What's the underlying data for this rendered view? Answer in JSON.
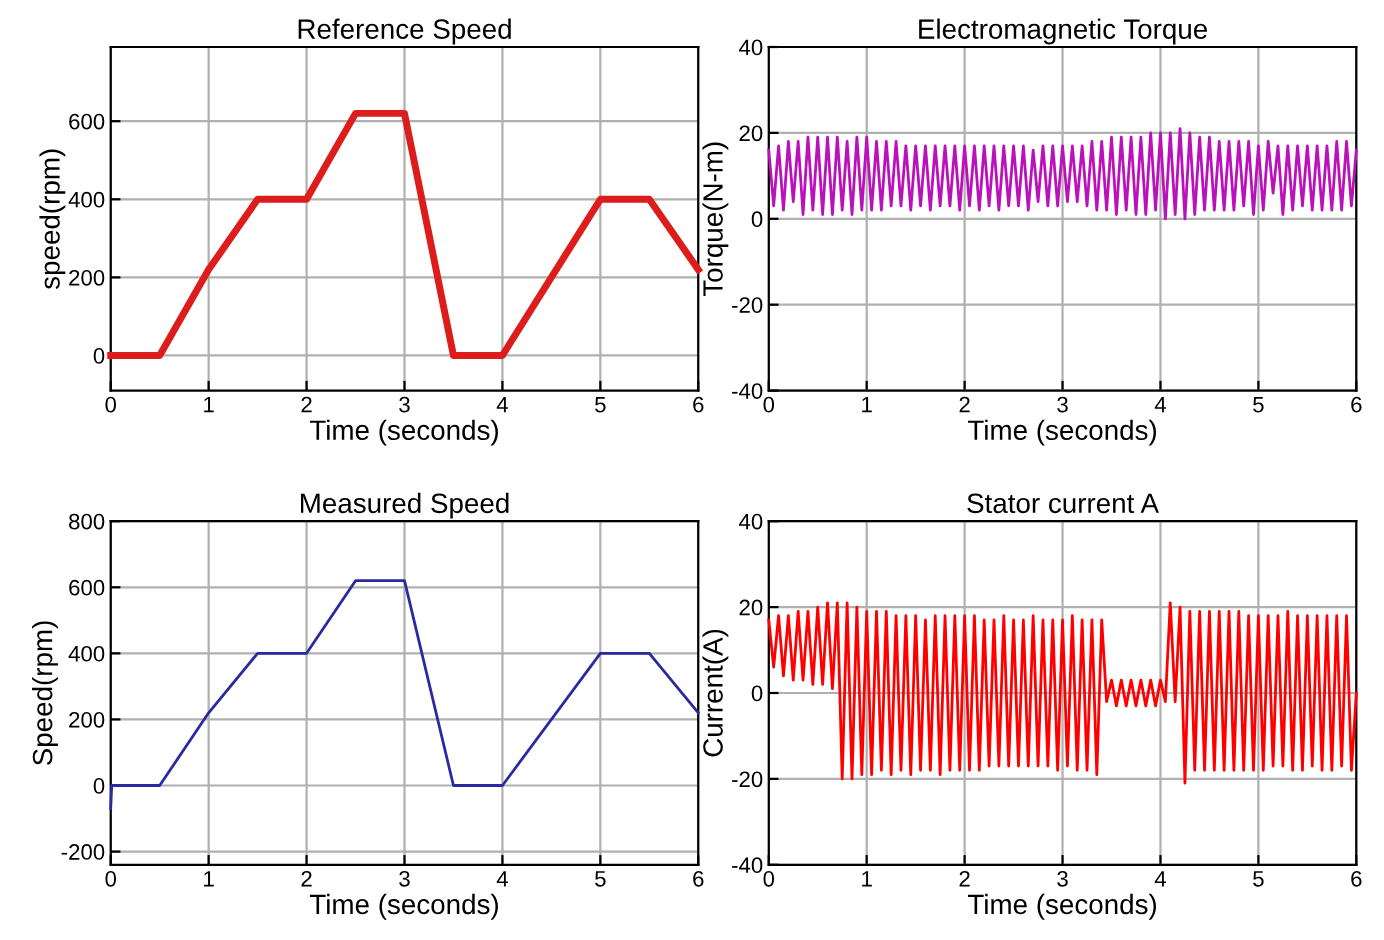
{
  "chart_data": [
    {
      "type": "line",
      "title": "Reference Speed",
      "xlabel": "Time (seconds)",
      "ylabel": "speed(rpm)",
      "xlim": [
        0,
        6
      ],
      "xticks": [
        0,
        1,
        2,
        3,
        4,
        5,
        6
      ],
      "ylim": [
        -90,
        790
      ],
      "yticks": [
        0,
        200,
        400,
        600
      ],
      "grid": true,
      "series": [
        {
          "color": "#dd1c1c",
          "x": [
            0,
            0.5,
            1,
            1.5,
            2,
            2.5,
            3,
            3.5,
            4,
            5,
            5.5,
            6
          ],
          "values": [
            0,
            0,
            220,
            400,
            400,
            620,
            620,
            0,
            0,
            400,
            400,
            220
          ]
        }
      ]
    },
    {
      "type": "line",
      "title": "Electromagnetic Torque",
      "xlabel": "Time (seconds)",
      "ylabel": "Torque(N-m)",
      "xlim": [
        0,
        6
      ],
      "xticks": [
        0,
        1,
        2,
        3,
        4,
        5,
        6
      ],
      "ylim": [
        -40,
        40
      ],
      "yticks": [
        -40,
        -20,
        0,
        20,
        40
      ],
      "grid": true,
      "series": [
        {
          "color": "#bb11bb",
          "x": [
            0,
            0.05,
            0.1,
            0.15,
            0.2,
            0.25,
            0.3,
            0.35,
            0.4,
            0.45,
            0.5,
            0.55,
            0.6,
            0.65,
            0.7,
            0.75,
            0.8,
            0.85,
            0.9,
            0.95,
            1,
            1.05,
            1.1,
            1.15,
            1.2,
            1.25,
            1.3,
            1.35,
            1.4,
            1.45,
            1.5,
            1.55,
            1.6,
            1.65,
            1.7,
            1.75,
            1.8,
            1.85,
            1.9,
            1.95,
            2,
            2.05,
            2.1,
            2.15,
            2.2,
            2.25,
            2.3,
            2.35,
            2.4,
            2.45,
            2.5,
            2.55,
            2.6,
            2.65,
            2.7,
            2.75,
            2.8,
            2.85,
            2.9,
            2.95,
            3,
            3.05,
            3.1,
            3.15,
            3.2,
            3.25,
            3.3,
            3.35,
            3.4,
            3.45,
            3.5,
            3.55,
            3.6,
            3.65,
            3.7,
            3.75,
            3.8,
            3.85,
            3.9,
            3.95,
            4,
            4.05,
            4.1,
            4.15,
            4.2,
            4.25,
            4.3,
            4.35,
            4.4,
            4.45,
            4.5,
            4.55,
            4.6,
            4.65,
            4.7,
            4.75,
            4.8,
            4.85,
            4.9,
            4.95,
            5,
            5.05,
            5.1,
            5.15,
            5.2,
            5.25,
            5.3,
            5.35,
            5.4,
            5.45,
            5.5,
            5.55,
            5.6,
            5.65,
            5.7,
            5.75,
            5.8,
            5.85,
            5.9,
            5.95,
            6
          ],
          "values": [
            16,
            3,
            17,
            2,
            18,
            4,
            18,
            1,
            19,
            2,
            19,
            1,
            19,
            1,
            19,
            2,
            18,
            1,
            19,
            2,
            19,
            2,
            18,
            2,
            18,
            3,
            18,
            3,
            17,
            2,
            17,
            3,
            17,
            2,
            17,
            3,
            17,
            3,
            17,
            2,
            17,
            3,
            17,
            2,
            17,
            3,
            17,
            2,
            17,
            3,
            17,
            3,
            17,
            2,
            16,
            4,
            17,
            3,
            17,
            3,
            17,
            4,
            17,
            4,
            17,
            3,
            18,
            2,
            18,
            2,
            19,
            1,
            19,
            2,
            19,
            1,
            19,
            1,
            20,
            2,
            20,
            0,
            20,
            1,
            21,
            0,
            20,
            1,
            19,
            2,
            19,
            2,
            18,
            2,
            18,
            2,
            18,
            3,
            18,
            1,
            17,
            2,
            18,
            6,
            17,
            1,
            17,
            2,
            17,
            3,
            17,
            2,
            17,
            2,
            17,
            2,
            18,
            2,
            18,
            3,
            16
          ]
        }
      ]
    },
    {
      "type": "line",
      "title": "Measured Speed",
      "xlabel": "Time (seconds)",
      "ylabel": "Speed(rpm)",
      "xlim": [
        0,
        6
      ],
      "xticks": [
        0,
        1,
        2,
        3,
        4,
        5,
        6
      ],
      "ylim": [
        -240,
        800
      ],
      "yticks": [
        -200,
        0,
        200,
        400,
        600,
        800
      ],
      "grid": true,
      "series": [
        {
          "color": "#2a2aa0",
          "x": [
            0,
            0.01,
            0.03,
            0.5,
            1,
            1.5,
            2,
            2.5,
            3,
            3.5,
            4,
            5,
            5.5,
            6
          ],
          "values": [
            -70,
            0,
            0,
            0,
            220,
            400,
            400,
            620,
            620,
            0,
            0,
            400,
            400,
            220
          ]
        }
      ]
    },
    {
      "type": "line",
      "title": "Stator current A",
      "xlabel": "Time (seconds)",
      "ylabel": "Current(A)",
      "xlim": [
        0,
        6
      ],
      "xticks": [
        0,
        1,
        2,
        3,
        4,
        5,
        6
      ],
      "ylim": [
        -40,
        40
      ],
      "yticks": [
        -40,
        -20,
        0,
        20,
        40
      ],
      "grid": true,
      "series": [
        {
          "color": "#ff0000",
          "x": [
            0,
            0.05,
            0.1,
            0.15,
            0.2,
            0.25,
            0.3,
            0.35,
            0.4,
            0.45,
            0.5,
            0.55,
            0.6,
            0.65,
            0.7,
            0.75,
            0.8,
            0.85,
            0.9,
            0.95,
            1,
            1.05,
            1.1,
            1.15,
            1.2,
            1.25,
            1.3,
            1.35,
            1.4,
            1.45,
            1.5,
            1.55,
            1.6,
            1.65,
            1.7,
            1.75,
            1.8,
            1.85,
            1.9,
            1.95,
            2,
            2.05,
            2.1,
            2.15,
            2.2,
            2.25,
            2.3,
            2.35,
            2.4,
            2.45,
            2.5,
            2.55,
            2.6,
            2.65,
            2.7,
            2.75,
            2.8,
            2.85,
            2.9,
            2.95,
            3,
            3.05,
            3.1,
            3.15,
            3.2,
            3.25,
            3.3,
            3.35,
            3.4,
            3.45,
            3.5,
            3.55,
            3.6,
            3.65,
            3.7,
            3.75,
            3.8,
            3.85,
            3.9,
            3.95,
            4,
            4.05,
            4.1,
            4.15,
            4.2,
            4.25,
            4.3,
            4.35,
            4.4,
            4.45,
            4.5,
            4.55,
            4.6,
            4.65,
            4.7,
            4.75,
            4.8,
            4.85,
            4.9,
            4.95,
            5,
            5.05,
            5.1,
            5.15,
            5.2,
            5.25,
            5.3,
            5.35,
            5.4,
            5.45,
            5.5,
            5.55,
            5.6,
            5.65,
            5.7,
            5.75,
            5.8,
            5.85,
            5.9,
            5.95,
            6
          ],
          "values": [
            17,
            6,
            18,
            4,
            18,
            3,
            19,
            3,
            19,
            2,
            20,
            2,
            21,
            1,
            21,
            -20,
            21,
            -20,
            20,
            -19,
            19,
            -19,
            19,
            -18,
            19,
            -19,
            18,
            -18,
            18,
            -19,
            18,
            -18,
            17,
            -18,
            18,
            -19,
            18,
            -18,
            18,
            -18,
            18,
            -18,
            18,
            -18,
            17,
            -17,
            17,
            -17,
            18,
            -17,
            17,
            -17,
            17,
            -17,
            18,
            -17,
            17,
            -17,
            17,
            -18,
            17,
            -17,
            18,
            -18,
            17,
            -18,
            17,
            -19,
            17,
            -2,
            3,
            -3,
            3,
            -3,
            3,
            -3,
            3,
            -3,
            3,
            -3,
            3,
            -2,
            21,
            -2,
            20,
            -21,
            19,
            -18,
            19,
            -18,
            19,
            -18,
            19,
            -18,
            19,
            -18,
            19,
            -18,
            18,
            -18,
            18,
            -18,
            18,
            -17,
            18,
            -17,
            19,
            -18,
            18,
            -18,
            18,
            -17,
            18,
            -18,
            18,
            -18,
            18,
            -17,
            18,
            -18,
            0
          ]
        }
      ]
    }
  ]
}
